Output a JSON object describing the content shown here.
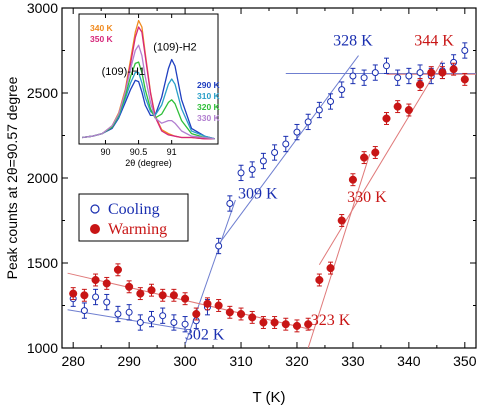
{
  "chart_data": [
    {
      "type": "scatter",
      "title": "",
      "xlabel": "T (K)",
      "ylabel": "Peak counts at 2θ=90.57 degree",
      "xlim": [
        278,
        352
      ],
      "ylim": [
        1000,
        3000
      ],
      "xticks": [
        280,
        290,
        300,
        310,
        320,
        330,
        340,
        350
      ],
      "yticks": [
        1000,
        1500,
        2000,
        2500,
        3000
      ],
      "legend": {
        "placement": "middle-left",
        "entries": [
          "Cooling",
          "Warming"
        ]
      },
      "colors": {
        "cooling": "#1a2fb0",
        "warming": "#c81515",
        "fit_cooling": "#6f7fd0",
        "fit_warming": "#e07a7a"
      },
      "annotations": [
        {
          "text": "328 K",
          "x": 330,
          "y": 2780,
          "color": "#1a2fb0"
        },
        {
          "text": "344 K",
          "x": 344.5,
          "y": 2780,
          "color": "#c81515"
        },
        {
          "text": "309 K",
          "x": 313,
          "y": 1880,
          "color": "#1a2fb0"
        },
        {
          "text": "330 K",
          "x": 332.5,
          "y": 1860,
          "color": "#c81515"
        },
        {
          "text": "302 K",
          "x": 303.5,
          "y": 1050,
          "color": "#1a2fb0"
        },
        {
          "text": "323 K",
          "x": 326,
          "y": 1135,
          "color": "#c81515"
        }
      ],
      "series": [
        {
          "name": "Cooling",
          "marker": "open-circle",
          "x": [
            280,
            282,
            284,
            286,
            288,
            290,
            292,
            294,
            296,
            298,
            300,
            302,
            304,
            306,
            308,
            310,
            312,
            314,
            316,
            318,
            320,
            322,
            324,
            326,
            328,
            330,
            332,
            334,
            336,
            338,
            340,
            342,
            344,
            346,
            348,
            350
          ],
          "y": [
            1290,
            1220,
            1300,
            1270,
            1200,
            1210,
            1150,
            1170,
            1190,
            1150,
            1140,
            1160,
            1240,
            1600,
            1850,
            2030,
            2050,
            2100,
            2150,
            2200,
            2270,
            2330,
            2400,
            2450,
            2520,
            2600,
            2590,
            2620,
            2660,
            2590,
            2600,
            2620,
            2600,
            2630,
            2680,
            2750
          ],
          "error": 45
        },
        {
          "name": "Warming",
          "marker": "filled-circle",
          "x": [
            280,
            282,
            284,
            286,
            288,
            290,
            292,
            294,
            296,
            298,
            300,
            302,
            304,
            306,
            308,
            310,
            312,
            314,
            316,
            318,
            320,
            322,
            324,
            326,
            328,
            330,
            332,
            334,
            336,
            338,
            340,
            342,
            344,
            346,
            348,
            350
          ],
          "y": [
            1320,
            1310,
            1400,
            1380,
            1460,
            1360,
            1320,
            1340,
            1310,
            1310,
            1290,
            1200,
            1260,
            1250,
            1210,
            1200,
            1180,
            1150,
            1150,
            1140,
            1130,
            1140,
            1400,
            1470,
            1750,
            1990,
            2120,
            2150,
            2350,
            2420,
            2400,
            2550,
            2620,
            2620,
            2640,
            2580
          ],
          "error": 35
        }
      ],
      "fit_lines": [
        {
          "series": "Cooling",
          "x": [
            279,
            300
          ],
          "y": [
            1225,
            1110
          ]
        },
        {
          "series": "Cooling",
          "x": [
            300,
            309
          ],
          "y": [
            1020,
            1870
          ]
        },
        {
          "series": "Cooling",
          "x": [
            306,
            331
          ],
          "y": [
            1610,
            2720
          ]
        },
        {
          "series": "Cooling",
          "x": [
            318,
            352
          ],
          "y": [
            2615,
            2615
          ]
        },
        {
          "series": "Warming",
          "x": [
            279,
            323
          ],
          "y": [
            1440,
            1105
          ]
        },
        {
          "series": "Warming",
          "x": [
            322,
            333
          ],
          "y": [
            1000,
            2140
          ]
        },
        {
          "series": "Warming",
          "x": [
            324,
            346
          ],
          "y": [
            1490,
            2690
          ]
        },
        {
          "series": "Warming",
          "x": [
            336,
            352
          ],
          "y": [
            2610,
            2610
          ]
        }
      ]
    },
    {
      "type": "line",
      "title": "",
      "xlabel": "2θ (degree)",
      "ylabel": "",
      "xlim": [
        89.6,
        91.7
      ],
      "ylim": [
        0,
        1
      ],
      "xticks": [
        90.0,
        90.5,
        91.0
      ],
      "yticks": [],
      "annotations": [
        {
          "text": "(109)-H1",
          "x": 90.27,
          "y": 0.53,
          "color": "#000000"
        },
        {
          "text": "(109)-H2",
          "x": 91.05,
          "y": 0.72,
          "color": "#000000"
        }
      ],
      "series": [
        {
          "name": "340 K",
          "color": "#f08a1e",
          "x": [
            89.65,
            89.8,
            89.95,
            90.1,
            90.2,
            90.3,
            90.38,
            90.45,
            90.5,
            90.55,
            90.6,
            90.68,
            90.75,
            90.85,
            90.95,
            91.05,
            91.15,
            91.3,
            91.5,
            91.65
          ],
          "y": [
            0.05,
            0.06,
            0.08,
            0.14,
            0.24,
            0.42,
            0.65,
            0.86,
            0.95,
            0.9,
            0.7,
            0.4,
            0.22,
            0.11,
            0.08,
            0.06,
            0.05,
            0.05,
            0.04,
            0.04
          ]
        },
        {
          "name": "350 K",
          "color": "#d6287a",
          "x": [
            89.65,
            89.8,
            89.95,
            90.1,
            90.2,
            90.3,
            90.38,
            90.45,
            90.5,
            90.55,
            90.6,
            90.68,
            90.75,
            90.85,
            90.95,
            91.05,
            91.15,
            91.3,
            91.5,
            91.65
          ],
          "y": [
            0.05,
            0.06,
            0.08,
            0.13,
            0.22,
            0.4,
            0.62,
            0.82,
            0.9,
            0.86,
            0.68,
            0.39,
            0.21,
            0.1,
            0.07,
            0.06,
            0.05,
            0.05,
            0.04,
            0.04
          ]
        },
        {
          "name": "290 K",
          "color": "#1f3fc0",
          "x": [
            89.65,
            89.8,
            89.95,
            90.1,
            90.2,
            90.3,
            90.38,
            90.45,
            90.5,
            90.55,
            90.6,
            90.68,
            90.75,
            90.85,
            90.95,
            91.0,
            91.05,
            91.15,
            91.3,
            91.5,
            91.65
          ],
          "y": [
            0.05,
            0.06,
            0.08,
            0.12,
            0.2,
            0.32,
            0.42,
            0.49,
            0.48,
            0.4,
            0.3,
            0.22,
            0.22,
            0.36,
            0.58,
            0.65,
            0.6,
            0.34,
            0.12,
            0.06,
            0.04
          ]
        },
        {
          "name": "310 K",
          "color": "#2aa0c8",
          "x": [
            89.65,
            89.8,
            89.95,
            90.1,
            90.2,
            90.3,
            90.38,
            90.45,
            90.5,
            90.55,
            90.6,
            90.68,
            90.75,
            90.85,
            90.95,
            91.0,
            91.05,
            91.15,
            91.3,
            91.5,
            91.65
          ],
          "y": [
            0.05,
            0.06,
            0.08,
            0.13,
            0.21,
            0.35,
            0.47,
            0.55,
            0.55,
            0.47,
            0.36,
            0.25,
            0.22,
            0.3,
            0.46,
            0.5,
            0.46,
            0.27,
            0.1,
            0.06,
            0.04
          ]
        },
        {
          "name": "320 K",
          "color": "#2fbf3a",
          "x": [
            89.65,
            89.8,
            89.95,
            90.1,
            90.2,
            90.3,
            90.38,
            90.45,
            90.5,
            90.55,
            90.6,
            90.68,
            90.75,
            90.85,
            90.95,
            91.0,
            91.05,
            91.15,
            91.3,
            91.5,
            91.65
          ],
          "y": [
            0.05,
            0.06,
            0.08,
            0.13,
            0.22,
            0.37,
            0.52,
            0.62,
            0.63,
            0.55,
            0.42,
            0.27,
            0.2,
            0.23,
            0.32,
            0.34,
            0.31,
            0.18,
            0.08,
            0.05,
            0.04
          ]
        },
        {
          "name": "330 K",
          "color": "#b27fd0",
          "x": [
            89.65,
            89.8,
            89.95,
            90.1,
            90.2,
            90.3,
            90.38,
            90.45,
            90.5,
            90.55,
            90.6,
            90.68,
            90.75,
            90.85,
            90.95,
            91.0,
            91.05,
            91.15,
            91.3,
            91.5,
            91.65
          ],
          "y": [
            0.05,
            0.06,
            0.08,
            0.14,
            0.23,
            0.4,
            0.58,
            0.72,
            0.76,
            0.68,
            0.52,
            0.32,
            0.2,
            0.16,
            0.18,
            0.18,
            0.16,
            0.1,
            0.06,
            0.05,
            0.04
          ]
        }
      ]
    }
  ]
}
